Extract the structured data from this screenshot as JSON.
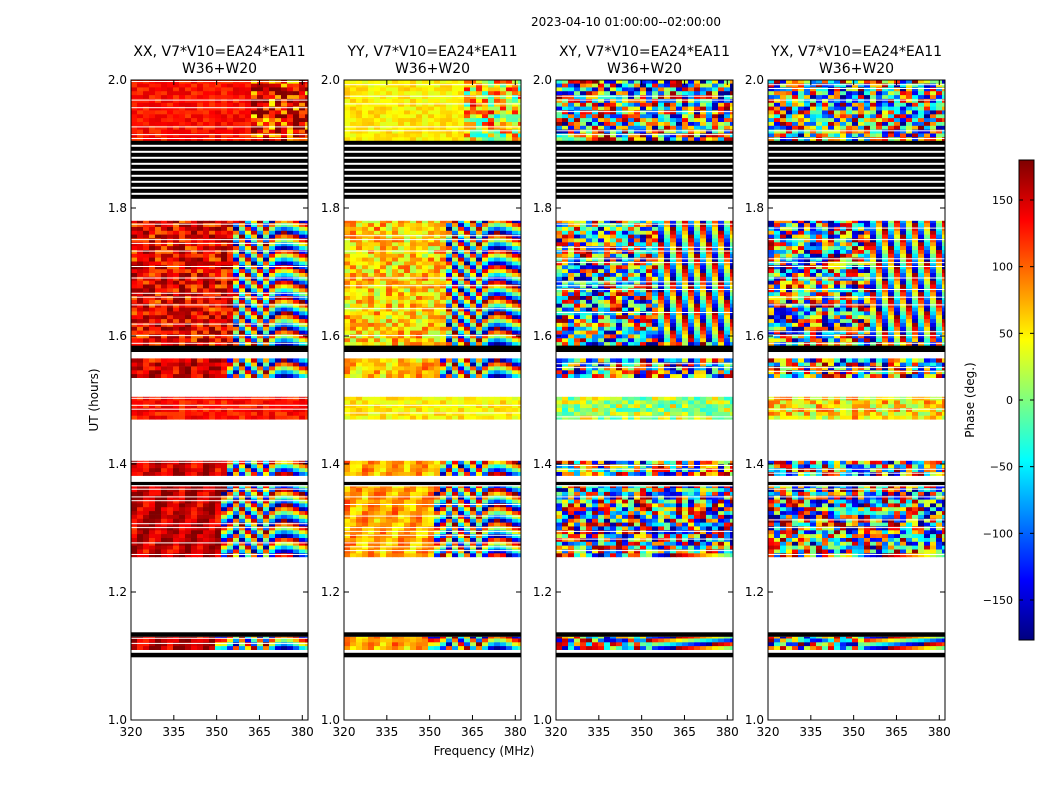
{
  "figure_title": "2023-04-10  01:00:00--02:00:00",
  "chart_data": {
    "type": "heatmap",
    "suptitle": "2023-04-10  01:00:00--02:00:00",
    "xlabel": "Frequency (MHz)",
    "ylabel": "UT (hours)",
    "xlim": [
      320,
      382
    ],
    "ylim": [
      1.0,
      2.0
    ],
    "xticks": [
      320,
      335,
      350,
      365,
      380
    ],
    "yticks": [
      1.0,
      1.2,
      1.4,
      1.6,
      1.8,
      2.0
    ],
    "panels": [
      {
        "polarization": "XX",
        "title_line1": "XX, V7*V10=EA24*EA11",
        "title_line2": "W36+W20"
      },
      {
        "polarization": "YY",
        "title_line1": "YY, V7*V10=EA24*EA11",
        "title_line2": "W36+W20"
      },
      {
        "polarization": "XY",
        "title_line1": "XY, V7*V10=EA24*EA11",
        "title_line2": "W36+W20"
      },
      {
        "polarization": "YX",
        "title_line1": "YX, V7*V10=EA24*EA11",
        "title_line2": "W36+W20"
      }
    ],
    "data_ut_ranges": [
      [
        1.11,
        1.13
      ],
      [
        1.255,
        1.365
      ],
      [
        1.382,
        1.405
      ],
      [
        1.47,
        1.505
      ],
      [
        1.535,
        1.565
      ],
      [
        1.585,
        1.78
      ],
      [
        1.905,
        2.0
      ]
    ],
    "blanked_ut_ranges": [
      [
        1.098,
        1.105
      ],
      [
        1.13,
        1.137
      ],
      [
        1.367,
        1.372
      ],
      [
        1.575,
        1.585
      ],
      [
        1.82,
        1.905
      ]
    ],
    "colorbar": {
      "label": "Phase (deg.)",
      "min": -180,
      "max": 180,
      "ticks": [
        -150,
        -100,
        -50,
        0,
        50,
        100,
        150
      ],
      "tick_labels": [
        "−150",
        "−100",
        "−50",
        "0",
        "50",
        "100",
        "150"
      ],
      "colormap": [
        "#00007f",
        "#0000ff",
        "#007fff",
        "#00ffff",
        "#7fff7f",
        "#ffff00",
        "#ff7f00",
        "#ff0000",
        "#7f0000"
      ]
    }
  }
}
